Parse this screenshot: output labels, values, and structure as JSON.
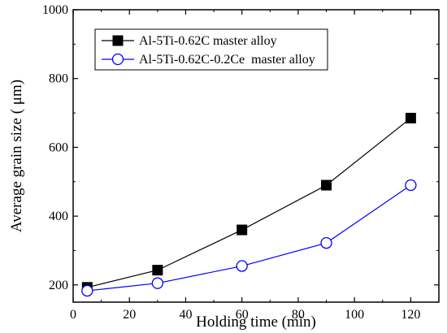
{
  "chart_data": {
    "type": "line",
    "title": "",
    "xlabel": "Holding time (min)",
    "ylabel": "Average grain size ( μm)",
    "xlim": [
      0,
      130
    ],
    "ylim": [
      150,
      1000
    ],
    "x_ticks": [
      0,
      20,
      40,
      60,
      80,
      100,
      120
    ],
    "y_ticks": [
      200,
      400,
      600,
      800,
      1000
    ],
    "grid": false,
    "legend_position": "top-left",
    "series": [
      {
        "name": "Al-5Ti-0.62C master alloy",
        "marker": "filled-square",
        "color": "#000000",
        "x": [
          5,
          30,
          60,
          90,
          120
        ],
        "y": [
          193,
          243,
          360,
          490,
          685
        ]
      },
      {
        "name": "Al-5Ti-0.62C-0.2Ce  master alloy",
        "marker": "open-circle",
        "color": "#0000ff",
        "x": [
          5,
          30,
          60,
          90,
          120
        ],
        "y": [
          183,
          205,
          255,
          322,
          490
        ]
      }
    ]
  }
}
